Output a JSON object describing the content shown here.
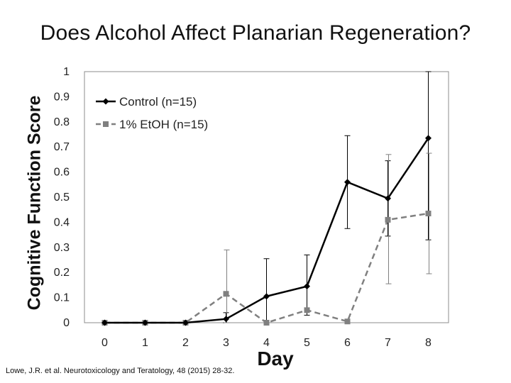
{
  "slide": {
    "title": "Does Alcohol Affect Planarian Regeneration?",
    "citation": "Lowe, J.R. et al.  Neurotoxicology and Teratology, 48 (2015) 28-32."
  },
  "chart_data": {
    "type": "line",
    "title": "Does Alcohol Affect Planarian Regeneration?",
    "xlabel": "Day",
    "ylabel": "Cognitive Function Score",
    "x": [
      0,
      1,
      2,
      3,
      4,
      5,
      6,
      7,
      8
    ],
    "x_tick_labels": [
      "0",
      "1",
      "2",
      "3",
      "4",
      "5",
      "6",
      "7",
      "8"
    ],
    "y_tick_labels": [
      "0",
      "0.1",
      "0.2",
      "0.3",
      "0.4",
      "0.5",
      "0.6",
      "0.7",
      "0.8",
      "0.9",
      "1"
    ],
    "xlim": [
      -0.5,
      8.5
    ],
    "ylim": [
      0,
      1
    ],
    "grid": false,
    "legend": "top-left",
    "series": [
      {
        "name": "Control (n=15)",
        "color": "#000000",
        "line_style": "solid",
        "marker": "diamond",
        "values": [
          0,
          0,
          0,
          0.015,
          0.105,
          0.145,
          0.56,
          0.495,
          0.735
        ],
        "error_low": [
          0,
          0,
          0,
          0,
          0,
          0.03,
          0.375,
          0.345,
          0.33
        ],
        "error_high": [
          0,
          0,
          0,
          0.04,
          0.255,
          0.27,
          0.745,
          0.645,
          1.0
        ]
      },
      {
        "name": "1% EtOH (n=15)",
        "color": "#808080",
        "line_style": "dashed",
        "marker": "square",
        "values": [
          0,
          0,
          0,
          0.115,
          0,
          0.05,
          0.005,
          0.41,
          0.435
        ],
        "error_low": [
          0,
          0,
          0,
          0,
          0,
          0,
          0,
          0.155,
          0.195
        ],
        "error_high": [
          0,
          0,
          0,
          0.29,
          0,
          0,
          0,
          0.67,
          0.675
        ]
      }
    ]
  }
}
